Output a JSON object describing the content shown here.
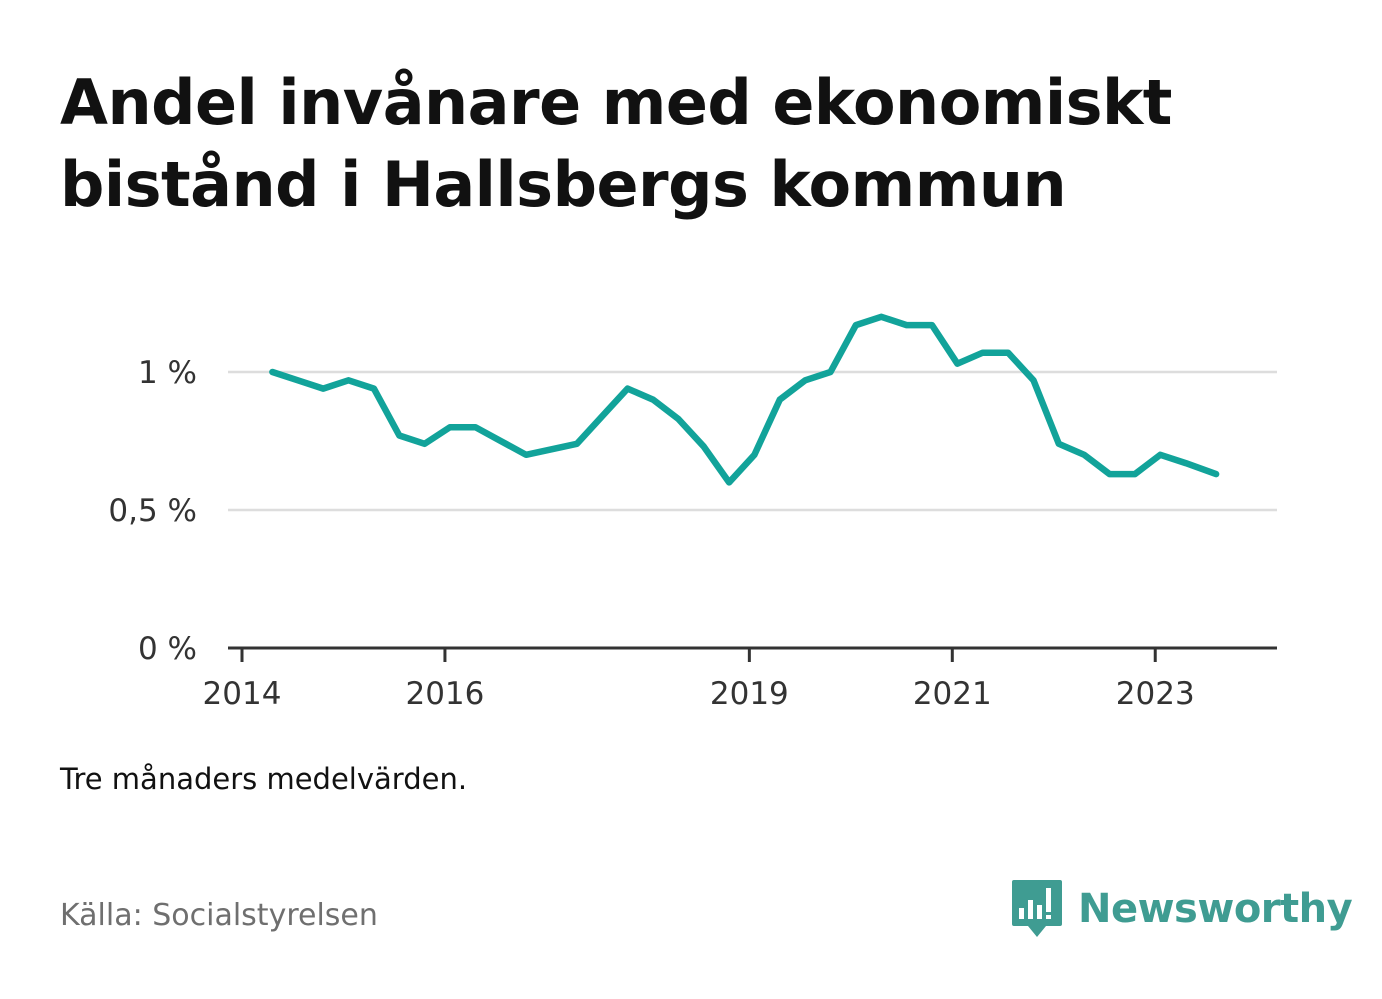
{
  "title": "Andel invånare med ekonomiskt bistånd i Hallsbergs kommun",
  "note": "Tre månaders medelvärden.",
  "source": "Källa: Socialstyrelsen",
  "brand": {
    "name": "Newsworthy",
    "color": "#3f9c92",
    "icon": "bar-chart-speech-bubble-icon"
  },
  "chart_data": {
    "type": "line",
    "title": "Andel invånare med ekonomiskt bistånd i Hallsbergs kommun",
    "xlabel": "",
    "ylabel": "",
    "color": "#12a39a",
    "grid": true,
    "xlim": [
      2014.0,
      2024.2
    ],
    "ylim": [
      0,
      1.25
    ],
    "x_ticks": [
      {
        "value": 2014,
        "label": "2014"
      },
      {
        "value": 2016,
        "label": "2016"
      },
      {
        "value": 2019,
        "label": "2019"
      },
      {
        "value": 2021,
        "label": "2021"
      },
      {
        "value": 2023,
        "label": "2023"
      }
    ],
    "y_ticks": [
      {
        "value": 0,
        "label": "0 %"
      },
      {
        "value": 0.5,
        "label": "0,5 %"
      },
      {
        "value": 1,
        "label": "1 %"
      }
    ],
    "series": [
      {
        "x": [
          2014.3,
          2014.55,
          2014.8,
          2015.05,
          2015.3,
          2015.55,
          2015.8,
          2016.05,
          2016.3,
          2016.55,
          2016.8,
          2017.05,
          2017.3,
          2017.55,
          2017.8,
          2018.05,
          2018.3,
          2018.55,
          2018.8,
          2019.05,
          2019.3,
          2019.55,
          2019.8,
          2020.05,
          2020.3,
          2020.55,
          2020.8,
          2021.05,
          2021.3,
          2021.55,
          2021.8,
          2022.05,
          2022.3,
          2022.55,
          2022.8,
          2023.05,
          2023.3,
          2023.6
        ],
        "y": [
          1.0,
          0.97,
          0.94,
          0.97,
          0.94,
          0.77,
          0.74,
          0.8,
          0.8,
          0.75,
          0.7,
          0.72,
          0.74,
          0.84,
          0.94,
          0.9,
          0.83,
          0.73,
          0.6,
          0.7,
          0.9,
          0.97,
          1.0,
          1.17,
          1.2,
          1.17,
          1.17,
          1.03,
          1.07,
          1.07,
          0.97,
          0.74,
          0.7,
          0.63,
          0.63,
          0.7,
          0.67,
          0.63
        ]
      }
    ]
  }
}
